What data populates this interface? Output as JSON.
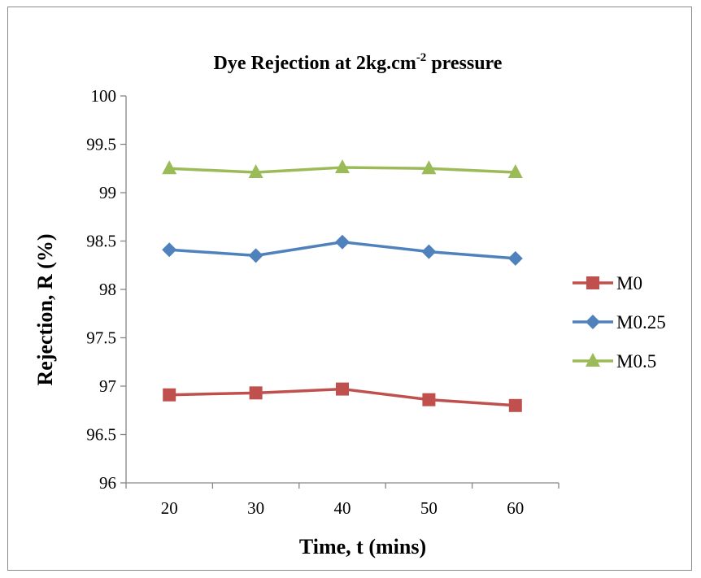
{
  "chart_data": {
    "type": "line",
    "title": "Dye Rejection at 2kg.cm",
    "title_superscript": "-2",
    "title_suffix": " pressure",
    "xlabel": "Time, t (mins)",
    "ylabel": "Rejection, R (%)",
    "x": [
      20,
      30,
      40,
      50,
      60
    ],
    "x_tick_labels": [
      "20",
      "30",
      "40",
      "50",
      "60"
    ],
    "ylim": [
      96,
      100
    ],
    "y_tick_labels": [
      "96",
      "96.5",
      "97",
      "97.5",
      "98",
      "98.5",
      "99",
      "99.5",
      "100"
    ],
    "grid": false,
    "legend_position": "right",
    "series": [
      {
        "name": "M0",
        "values": [
          96.91,
          96.93,
          96.97,
          96.86,
          96.8
        ],
        "color": "#c0504d",
        "marker": "square"
      },
      {
        "name": "M0.25",
        "values": [
          98.41,
          98.35,
          98.49,
          98.39,
          98.32
        ],
        "color": "#4f81bd",
        "marker": "diamond"
      },
      {
        "name": "M0.5",
        "values": [
          99.25,
          99.21,
          99.26,
          99.25,
          99.21
        ],
        "color": "#9bbb59",
        "marker": "triangle"
      }
    ]
  }
}
